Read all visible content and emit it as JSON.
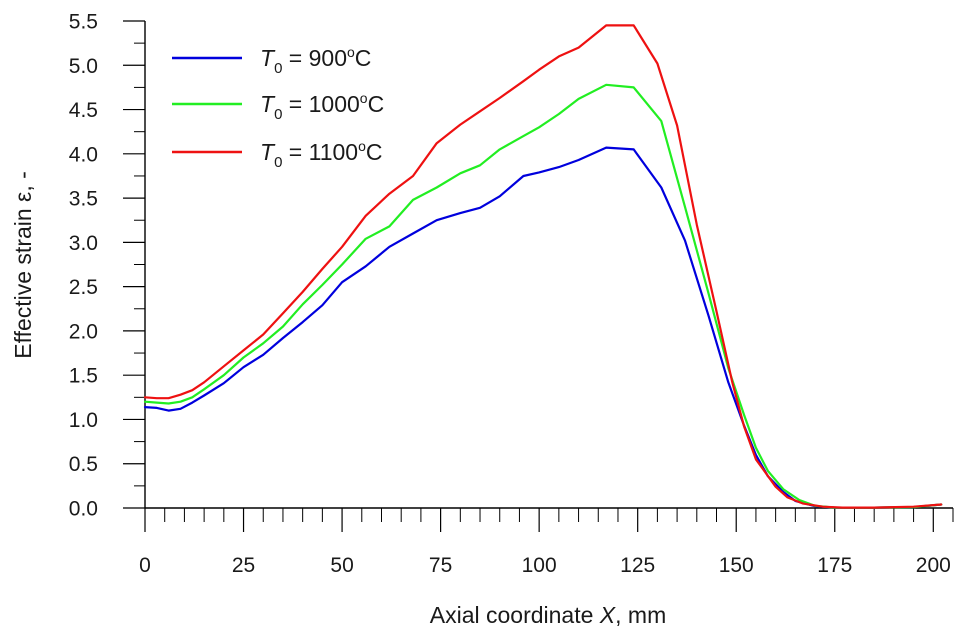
{
  "chart_data": {
    "type": "line",
    "title": "",
    "xlabel": {
      "prefix": "Axial coordinate ",
      "variable": "X",
      "suffix": ", mm"
    },
    "ylabel": "Effective strain ε, -",
    "xlim": [
      0,
      205
    ],
    "ylim": [
      0,
      5.5
    ],
    "xticks": [
      0,
      25,
      50,
      75,
      100,
      125,
      150,
      175,
      200
    ],
    "xtick_labels": [
      "0",
      "25",
      "50",
      "75",
      "100",
      "125",
      "150",
      "175",
      "200"
    ],
    "yticks": [
      0,
      0.5,
      1,
      1.5,
      2,
      2.5,
      3,
      3.5,
      4,
      4.5,
      5,
      5.5
    ],
    "ytick_labels": [
      "0.0",
      "0.5",
      "1.0",
      "1.5",
      "2.0",
      "2.5",
      "3.0",
      "3.5",
      "4.0",
      "4.5",
      "5.0",
      "5.5"
    ],
    "x_minor_step": 5,
    "y_minor_step": 0.25,
    "grid": false,
    "legend": {
      "placement": "top-left"
    },
    "series": [
      {
        "name": "T0 = 900°C",
        "label_var": "T",
        "label_sub": "0",
        "label_rest": " = 900",
        "label_deg": "o",
        "label_unit": "C",
        "color": "#0000dd",
        "points": [
          [
            0,
            1.14
          ],
          [
            3,
            1.13
          ],
          [
            6,
            1.1
          ],
          [
            9,
            1.12
          ],
          [
            12,
            1.19
          ],
          [
            15,
            1.27
          ],
          [
            20,
            1.41
          ],
          [
            25,
            1.59
          ],
          [
            30,
            1.73
          ],
          [
            35,
            1.92
          ],
          [
            40,
            2.1
          ],
          [
            45,
            2.29
          ],
          [
            50,
            2.55
          ],
          [
            56,
            2.73
          ],
          [
            62,
            2.95
          ],
          [
            68,
            3.1
          ],
          [
            74,
            3.25
          ],
          [
            80,
            3.33
          ],
          [
            85,
            3.39
          ],
          [
            90,
            3.52
          ],
          [
            96,
            3.75
          ],
          [
            100,
            3.79
          ],
          [
            105,
            3.85
          ],
          [
            110,
            3.93
          ],
          [
            117,
            4.07
          ],
          [
            124,
            4.05
          ],
          [
            131,
            3.62
          ],
          [
            137,
            3.02
          ],
          [
            143,
            2.17
          ],
          [
            148,
            1.42
          ],
          [
            152,
            0.93
          ],
          [
            155,
            0.6
          ],
          [
            158,
            0.36
          ],
          [
            162,
            0.18
          ],
          [
            165,
            0.08
          ],
          [
            170,
            0.02
          ],
          [
            175,
            0.005
          ],
          [
            185,
            0.005
          ],
          [
            195,
            0.01
          ],
          [
            202,
            0.04
          ]
        ]
      },
      {
        "name": "T0 = 1000°C",
        "label_var": "T",
        "label_sub": "0",
        "label_rest": " = 1000",
        "label_deg": "o",
        "label_unit": "C",
        "color": "#22ee22",
        "points": [
          [
            0,
            1.2
          ],
          [
            3,
            1.19
          ],
          [
            6,
            1.18
          ],
          [
            9,
            1.2
          ],
          [
            12,
            1.25
          ],
          [
            15,
            1.34
          ],
          [
            20,
            1.5
          ],
          [
            25,
            1.7
          ],
          [
            30,
            1.86
          ],
          [
            35,
            2.05
          ],
          [
            40,
            2.3
          ],
          [
            45,
            2.52
          ],
          [
            50,
            2.75
          ],
          [
            56,
            3.04
          ],
          [
            62,
            3.18
          ],
          [
            68,
            3.48
          ],
          [
            74,
            3.62
          ],
          [
            80,
            3.78
          ],
          [
            85,
            3.87
          ],
          [
            90,
            4.05
          ],
          [
            96,
            4.2
          ],
          [
            100,
            4.3
          ],
          [
            105,
            4.45
          ],
          [
            110,
            4.62
          ],
          [
            117,
            4.78
          ],
          [
            124,
            4.75
          ],
          [
            131,
            4.37
          ],
          [
            137,
            3.4
          ],
          [
            143,
            2.42
          ],
          [
            148,
            1.58
          ],
          [
            152,
            1.05
          ],
          [
            155,
            0.68
          ],
          [
            158,
            0.42
          ],
          [
            162,
            0.21
          ],
          [
            166,
            0.09
          ],
          [
            170,
            0.025
          ],
          [
            175,
            0.005
          ],
          [
            185,
            0.005
          ],
          [
            195,
            0.01
          ],
          [
            202,
            0.04
          ]
        ]
      },
      {
        "name": "T0 = 1100°C",
        "label_var": "T",
        "label_sub": "0",
        "label_rest": " = 1100",
        "label_deg": "o",
        "label_unit": "C",
        "color": "#ee1111",
        "points": [
          [
            0,
            1.25
          ],
          [
            3,
            1.24
          ],
          [
            6,
            1.24
          ],
          [
            9,
            1.28
          ],
          [
            12,
            1.33
          ],
          [
            15,
            1.42
          ],
          [
            20,
            1.6
          ],
          [
            25,
            1.78
          ],
          [
            30,
            1.96
          ],
          [
            35,
            2.2
          ],
          [
            40,
            2.44
          ],
          [
            45,
            2.7
          ],
          [
            50,
            2.95
          ],
          [
            56,
            3.3
          ],
          [
            62,
            3.55
          ],
          [
            68,
            3.75
          ],
          [
            74,
            4.12
          ],
          [
            80,
            4.33
          ],
          [
            85,
            4.48
          ],
          [
            90,
            4.63
          ],
          [
            96,
            4.82
          ],
          [
            100,
            4.95
          ],
          [
            105,
            5.1
          ],
          [
            110,
            5.2
          ],
          [
            117,
            5.45
          ],
          [
            124,
            5.45
          ],
          [
            130,
            5.02
          ],
          [
            135,
            4.32
          ],
          [
            140,
            3.2
          ],
          [
            145,
            2.22
          ],
          [
            149,
            1.42
          ],
          [
            152,
            0.92
          ],
          [
            155,
            0.55
          ],
          [
            160,
            0.24
          ],
          [
            163,
            0.12
          ],
          [
            167,
            0.05
          ],
          [
            172,
            0.015
          ],
          [
            177,
            0.005
          ],
          [
            185,
            0.005
          ],
          [
            195,
            0.015
          ],
          [
            202,
            0.04
          ]
        ]
      }
    ]
  }
}
